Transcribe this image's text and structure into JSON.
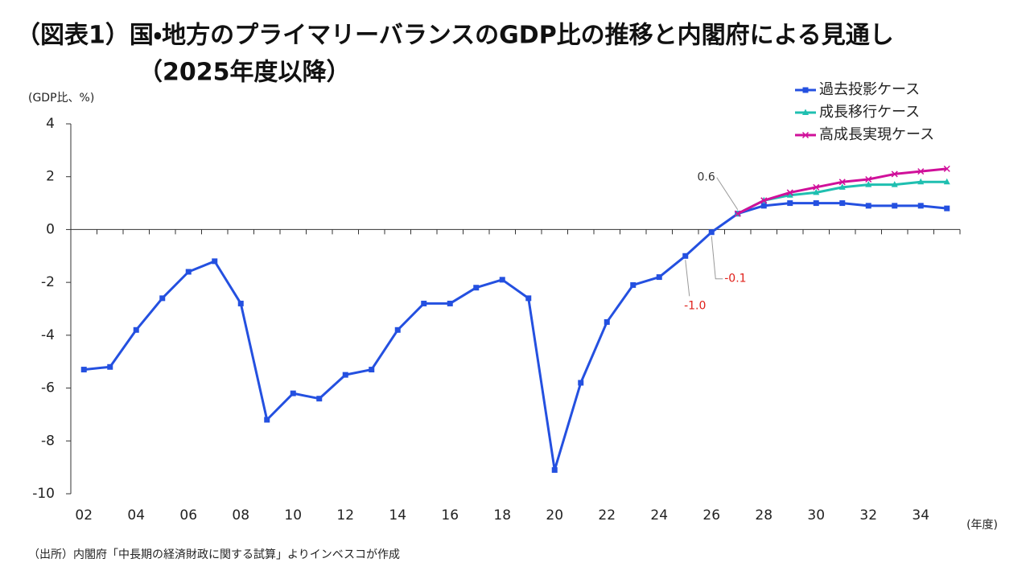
{
  "chart_data": {
    "type": "line",
    "title": [
      "（図表1）国・地方のプライマリーバランスのGDP比の推移と内閣府による見通し",
      "（2025年度以降）"
    ],
    "y_label": "(GDP比、%)",
    "x_label": "(年度)",
    "source": "（出所）内閣府「中長期の経済財政に関する試算」よりインベスコが作成",
    "categories": [
      "02",
      null,
      "04",
      null,
      "06",
      null,
      "08",
      null,
      "10",
      null,
      "12",
      null,
      "14",
      null,
      "16",
      null,
      "18",
      null,
      "20",
      null,
      "22",
      null,
      "24",
      null,
      "26",
      null,
      "28",
      null,
      "30",
      null,
      "32",
      null,
      "34",
      null
    ],
    "series": [
      {
        "name": "過去投影ケース",
        "color": "#2450e0",
        "marker": "square",
        "values": [
          -5.3,
          -5.2,
          -3.8,
          -2.6,
          -1.6,
          -1.2,
          -2.8,
          -7.2,
          -6.2,
          -6.4,
          -5.5,
          -5.3,
          -3.8,
          -2.8,
          -2.8,
          -2.2,
          -1.9,
          -2.6,
          -9.1,
          -5.8,
          -3.5,
          -2.1,
          -1.8,
          -1.0,
          -0.1,
          0.6,
          0.9,
          1.0,
          1.0,
          1.0,
          0.9,
          0.9,
          0.9,
          0.8
        ],
        "value_labels": [
          null,
          null,
          null,
          null,
          null,
          null,
          null,
          null,
          null,
          null,
          null,
          null,
          null,
          null,
          null,
          null,
          null,
          null,
          null,
          null,
          null,
          null,
          null,
          "-1.0",
          "-0.1",
          "0.6",
          null,
          null,
          null,
          null,
          null,
          null,
          null,
          null
        ]
      },
      {
        "name": "成長移行ケース",
        "color": "#1fbfb0",
        "marker": "triangle",
        "values": [
          null,
          null,
          null,
          null,
          null,
          null,
          null,
          null,
          null,
          null,
          null,
          null,
          null,
          null,
          null,
          null,
          null,
          null,
          null,
          null,
          null,
          null,
          null,
          null,
          null,
          0.6,
          1.1,
          1.3,
          1.4,
          1.6,
          1.7,
          1.7,
          1.8,
          1.8
        ]
      },
      {
        "name": "高成長実現ケース",
        "color": "#d0109a",
        "marker": "cross",
        "values": [
          null,
          null,
          null,
          null,
          null,
          null,
          null,
          null,
          null,
          null,
          null,
          null,
          null,
          null,
          null,
          null,
          null,
          null,
          null,
          null,
          null,
          null,
          null,
          null,
          null,
          0.6,
          1.1,
          1.4,
          1.6,
          1.8,
          1.9,
          2.1,
          2.2,
          2.3
        ]
      }
    ],
    "ylim": [
      -10,
      4
    ],
    "yticks": [
      4,
      2,
      0,
      -2,
      -4,
      -6,
      -8,
      -10
    ],
    "grid": false,
    "legend": "top-right"
  }
}
